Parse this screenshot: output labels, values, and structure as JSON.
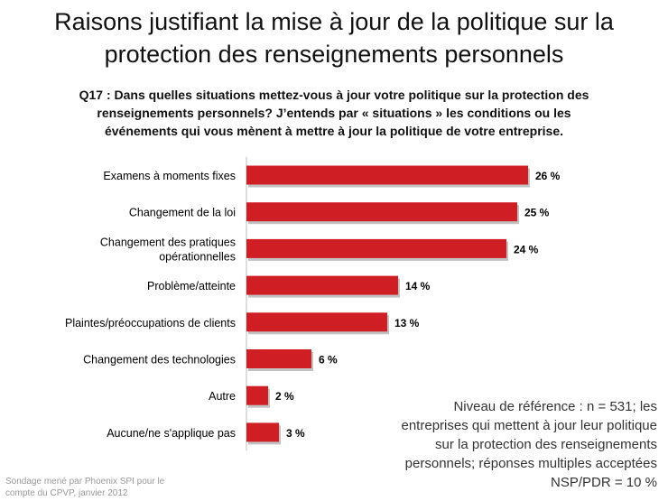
{
  "title": {
    "line1": "Raisons justifiant la mise à jour de la politique sur la",
    "line2": "protection des renseignements personnels"
  },
  "question": {
    "line1": "Q17 : Dans quelles situations mettez-vous à jour votre politique sur la protection des",
    "line2": "renseignements personnels? J’entends par « situations » les conditions ou les",
    "line3": "événements qui vous mènent à mettre à jour la politique de votre entreprise."
  },
  "note": {
    "line1": "Niveau de référence : n = 531; les",
    "line2": "entreprises qui mettent à jour leur politique",
    "line3": "sur la protection des renseignements",
    "line4": "personnels; réponses multiples acceptées",
    "line5": "NSP/PDR = 10 %"
  },
  "source": {
    "line1": "Sondage mené par Phoenix SPI pour le",
    "line2": "compte du CPVP, janvier 2012"
  },
  "colors": {
    "bar": "#d01f24",
    "bar_shadow": "#8f8f8f"
  },
  "chart_data": {
    "type": "bar",
    "orientation": "horizontal",
    "categories": [
      [
        "Examens à moments fixes"
      ],
      [
        "Changement de la loi"
      ],
      [
        "Changement des pratiques",
        "opérationnelles"
      ],
      [
        "Problème/atteinte"
      ],
      [
        "Plaintes/préoccupations de clients"
      ],
      [
        "Changement des technologies"
      ],
      [
        "Autre"
      ],
      [
        "Aucune/ne s'applique pas"
      ]
    ],
    "values": [
      26,
      25,
      24,
      14,
      13,
      6,
      2,
      3
    ],
    "value_labels": [
      "26 %",
      "25 %",
      "24 %",
      "14 %",
      "13 %",
      "6 %",
      "2 %",
      "3 %"
    ],
    "xlim": [
      0,
      30
    ],
    "grid": false,
    "legend": "none"
  }
}
